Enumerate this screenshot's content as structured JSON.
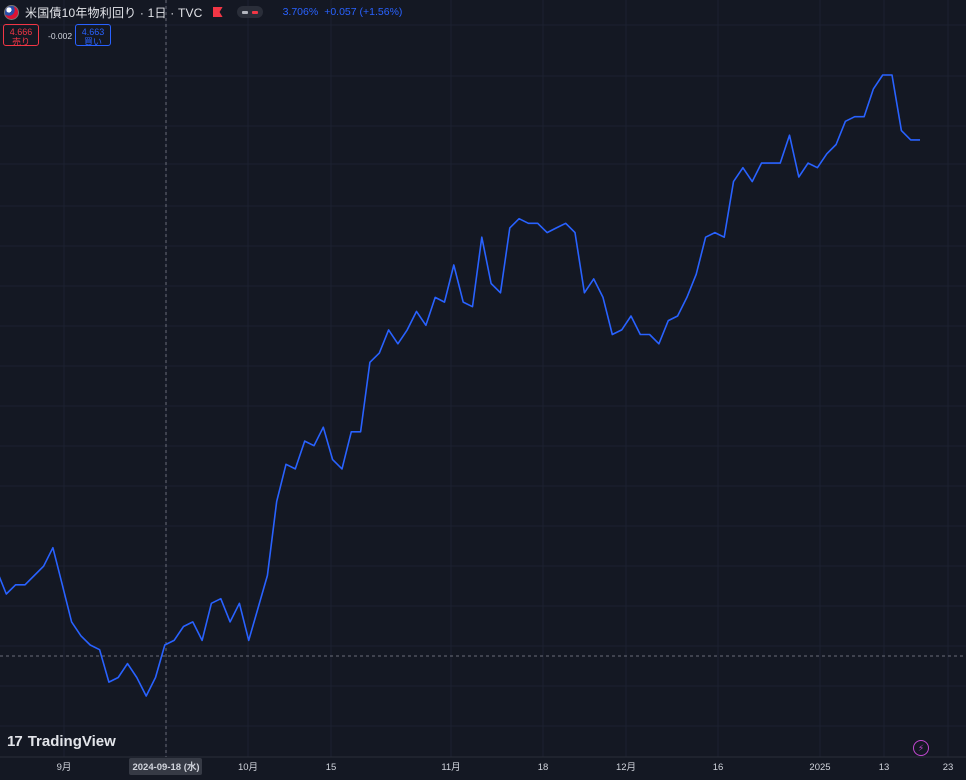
{
  "header": {
    "title": "米国債10年物利回り · 1日 · TVC",
    "last_value": "3.706%",
    "change": "+0.057 (+1.56%)"
  },
  "quote": {
    "sell_price": "4.666",
    "sell_label": "売り",
    "spread": "-0.002",
    "buy_price": "4.663",
    "buy_label": "買い"
  },
  "logo": {
    "mark": "17",
    "name": "TradingView"
  },
  "crosshair": {
    "date_label": "2024-09-18 (水)"
  },
  "colors": {
    "background": "#141823",
    "line": "#2962ff",
    "grid": "#1f2433",
    "crosshair": "#5d606b"
  },
  "chart_data": {
    "type": "line",
    "x_unit": "trading day",
    "xlabels": [
      "9月",
      "2024-09-18 (水)",
      "10月",
      "15",
      "11月",
      "18",
      "12月",
      "16",
      "2025",
      "13",
      "23"
    ],
    "series": [
      {
        "values": [
          3.82,
          3.77,
          3.79,
          3.79,
          3.81,
          3.83,
          3.87,
          3.79,
          3.71,
          3.68,
          3.66,
          3.65,
          3.58,
          3.59,
          3.62,
          3.59,
          3.55,
          3.59,
          3.66,
          3.67,
          3.7,
          3.71,
          3.67,
          3.75,
          3.76,
          3.71,
          3.75,
          3.67,
          3.74,
          3.81,
          3.97,
          4.05,
          4.04,
          4.1,
          4.09,
          4.13,
          4.06,
          4.04,
          4.12,
          4.12,
          4.27,
          4.29,
          4.34,
          4.31,
          4.34,
          4.38,
          4.35,
          4.41,
          4.4,
          4.48,
          4.4,
          4.39,
          4.54,
          4.44,
          4.42,
          4.56,
          4.58,
          4.57,
          4.57,
          4.55,
          4.56,
          4.57,
          4.55,
          4.42,
          4.45,
          4.41,
          4.33,
          4.34,
          4.37,
          4.33,
          4.33,
          4.31,
          4.36,
          4.37,
          4.41,
          4.46,
          4.54,
          4.55,
          4.54,
          4.66,
          4.69,
          4.66,
          4.7,
          4.7,
          4.7,
          4.76,
          4.67,
          4.7,
          4.69,
          4.72,
          4.74,
          4.79,
          4.8,
          4.8,
          4.86,
          4.89,
          4.89,
          4.77,
          4.75,
          4.75
        ]
      }
    ],
    "grid": true
  }
}
